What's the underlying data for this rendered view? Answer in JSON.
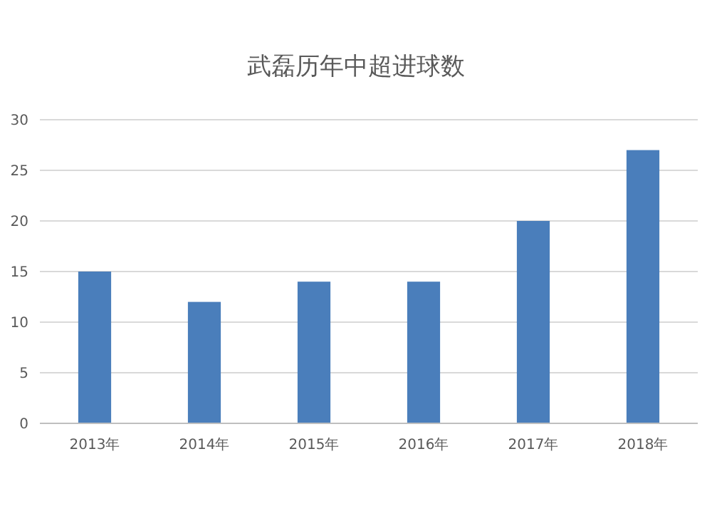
{
  "chart_data": {
    "type": "bar",
    "title": "武磊历年中超进球数",
    "categories": [
      "2013年",
      "2014年",
      "2015年",
      "2016年",
      "2017年",
      "2018年"
    ],
    "values": [
      15,
      12,
      14,
      14,
      20,
      27
    ],
    "color": "#4a7ebb",
    "ylim": [
      0,
      30
    ],
    "yticks": [
      0,
      5,
      10,
      15,
      20,
      25,
      30
    ],
    "grid": "y"
  }
}
